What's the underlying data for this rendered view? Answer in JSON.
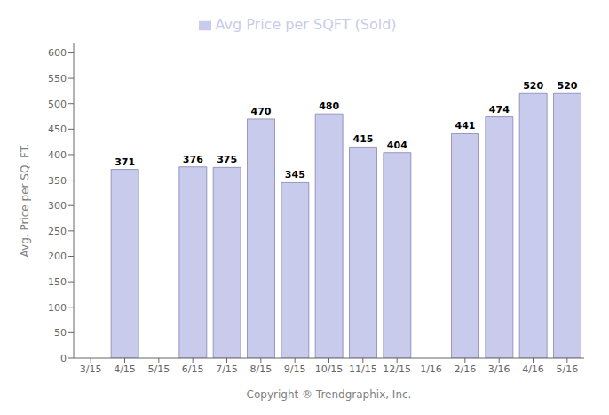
{
  "chart_data": {
    "type": "bar",
    "categories": [
      "3/15",
      "4/15",
      "5/15",
      "6/15",
      "7/15",
      "8/15",
      "9/15",
      "10/15",
      "11/15",
      "12/15",
      "1/16",
      "2/16",
      "3/16",
      "4/16",
      "5/16"
    ],
    "series": [
      {
        "name": "Avg Price per SQFT (Sold)",
        "color": "#c8cbec",
        "values": [
          0,
          371,
          0,
          376,
          375,
          470,
          345,
          480,
          415,
          404,
          0,
          441,
          474,
          520,
          520
        ]
      }
    ],
    "ylabel": "Avg. Price per SQ. FT.",
    "xlabel": "Copyright ® Trendgraphix, Inc.",
    "ylim": [
      0,
      620
    ],
    "yticks": [
      0,
      50,
      100,
      150,
      200,
      250,
      300,
      350,
      400,
      450,
      500,
      550,
      600
    ],
    "grid": false,
    "legend": "top",
    "data_labels": true
  }
}
